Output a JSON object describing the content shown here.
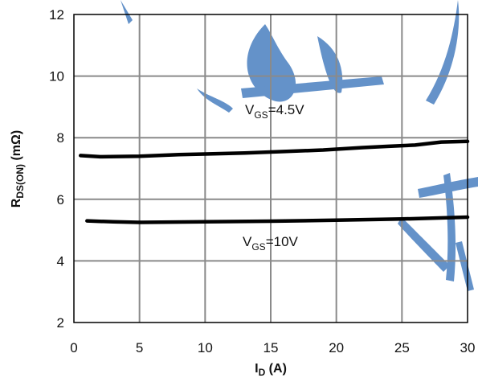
{
  "chart_data": {
    "type": "line",
    "x_ticks": [
      "0",
      "5",
      "10",
      "15",
      "20",
      "25",
      "30"
    ],
    "y_ticks": [
      "2",
      "4",
      "6",
      "8",
      "10",
      "12"
    ],
    "xlim": [
      0,
      30
    ],
    "ylim": [
      2,
      12
    ],
    "grid": true,
    "xlabel": {
      "main": "I",
      "sub": "D",
      "tail": " (A)"
    },
    "ylabel": {
      "main": "R",
      "sub": "DS(ON)",
      "tail": " (mΩ)"
    },
    "series": [
      {
        "annotation": {
          "main": "V",
          "sub": "GS",
          "tail": "=4.5V"
        },
        "color": "#000000",
        "x": [
          0.5,
          2,
          5,
          8,
          10,
          13,
          16,
          19,
          22,
          24,
          26,
          28,
          30
        ],
        "y": [
          7.42,
          7.38,
          7.4,
          7.45,
          7.47,
          7.5,
          7.55,
          7.6,
          7.68,
          7.72,
          7.76,
          7.86,
          7.88
        ]
      },
      {
        "annotation": {
          "main": "V",
          "sub": "GS",
          "tail": "=10V"
        },
        "color": "#000000",
        "x": [
          1,
          3,
          5,
          10,
          15,
          20,
          25,
          30
        ],
        "y": [
          5.3,
          5.27,
          5.25,
          5.27,
          5.29,
          5.32,
          5.36,
          5.42
        ]
      }
    ]
  },
  "watermark": {
    "color": "#4a7fc0",
    "text": "琪 半"
  }
}
